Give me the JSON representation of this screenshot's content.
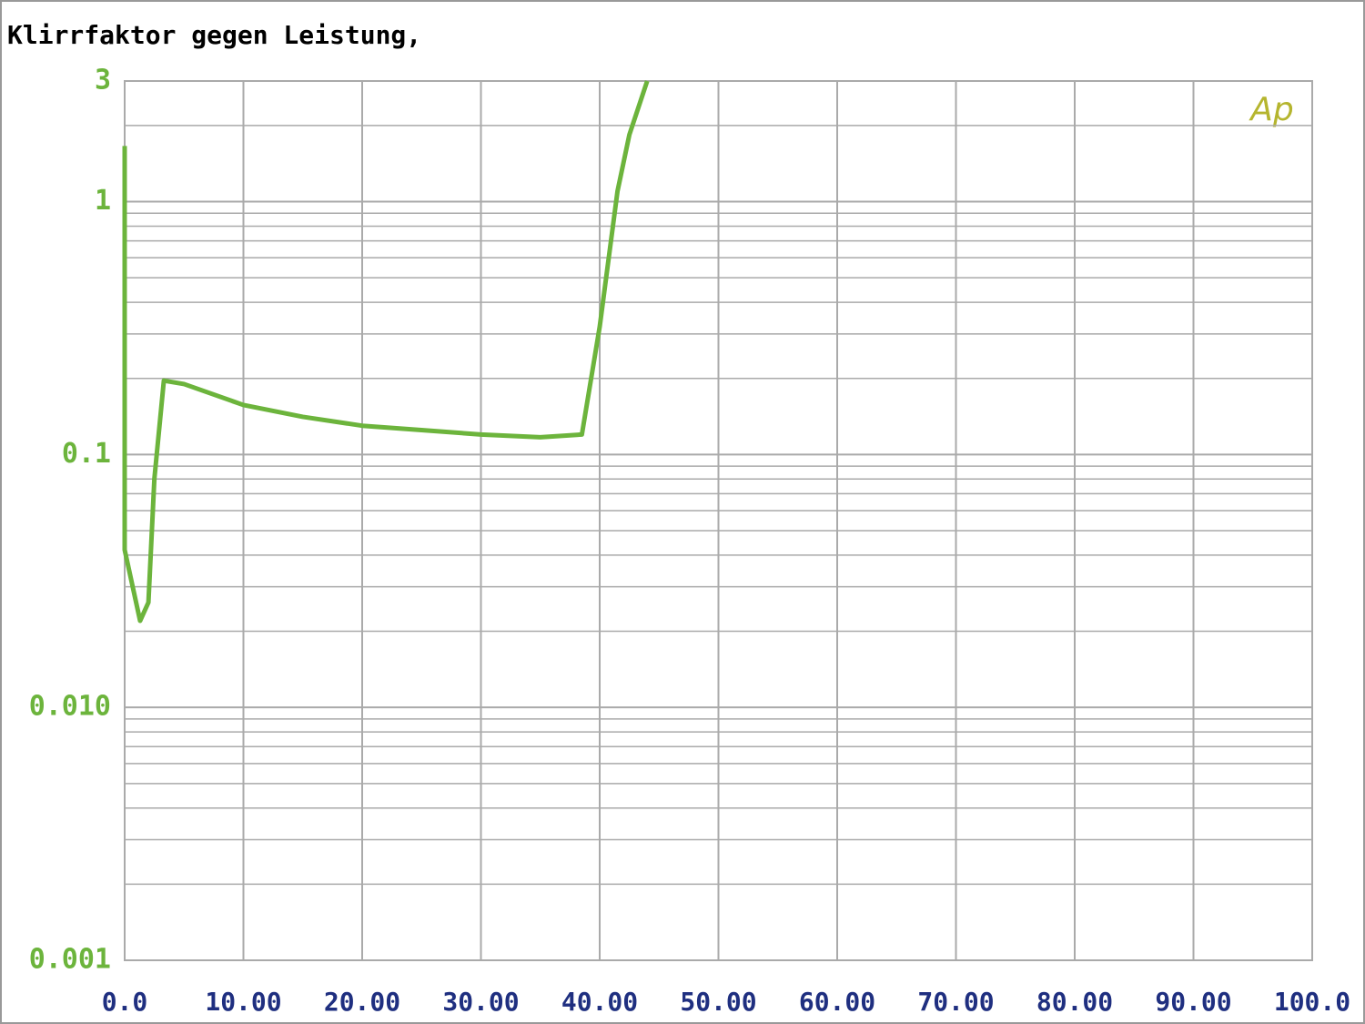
{
  "chart_data": {
    "type": "line",
    "title": "Klirrfaktor gegen Leistung,",
    "logo": "Ap",
    "x": [
      0,
      0,
      1.3,
      2.0,
      2.5,
      3.3,
      5,
      10,
      15,
      20,
      25,
      30,
      35,
      38.5,
      40,
      41.5,
      42.5,
      44
    ],
    "series": [
      {
        "color": "#6cb43c",
        "values": [
          1.66,
          0.042,
          0.022,
          0.026,
          0.08,
          0.196,
          0.19,
          0.157,
          0.141,
          0.13,
          0.125,
          0.12,
          0.117,
          0.12,
          0.32,
          1.1,
          1.84,
          3
        ]
      }
    ],
    "xlim": [
      0,
      100
    ],
    "xticks": [
      {
        "value": 0,
        "label": "0.0"
      },
      {
        "value": 10,
        "label": "10.00"
      },
      {
        "value": 20,
        "label": "20.00"
      },
      {
        "value": 30,
        "label": "30.00"
      },
      {
        "value": 40,
        "label": "40.00"
      },
      {
        "value": 50,
        "label": "50.00"
      },
      {
        "value": 60,
        "label": "60.00"
      },
      {
        "value": 70,
        "label": "70.00"
      },
      {
        "value": 80,
        "label": "80.00"
      },
      {
        "value": 90,
        "label": "90.00"
      },
      {
        "value": 100,
        "label": "100.0"
      }
    ],
    "ylim": [
      0.001,
      3
    ],
    "ylog": true,
    "yticks": [
      0.001,
      {
        "value": 0.01,
        "label": "0.010"
      },
      0.1,
      1,
      3
    ],
    "grid": true,
    "minor_grid": true
  }
}
